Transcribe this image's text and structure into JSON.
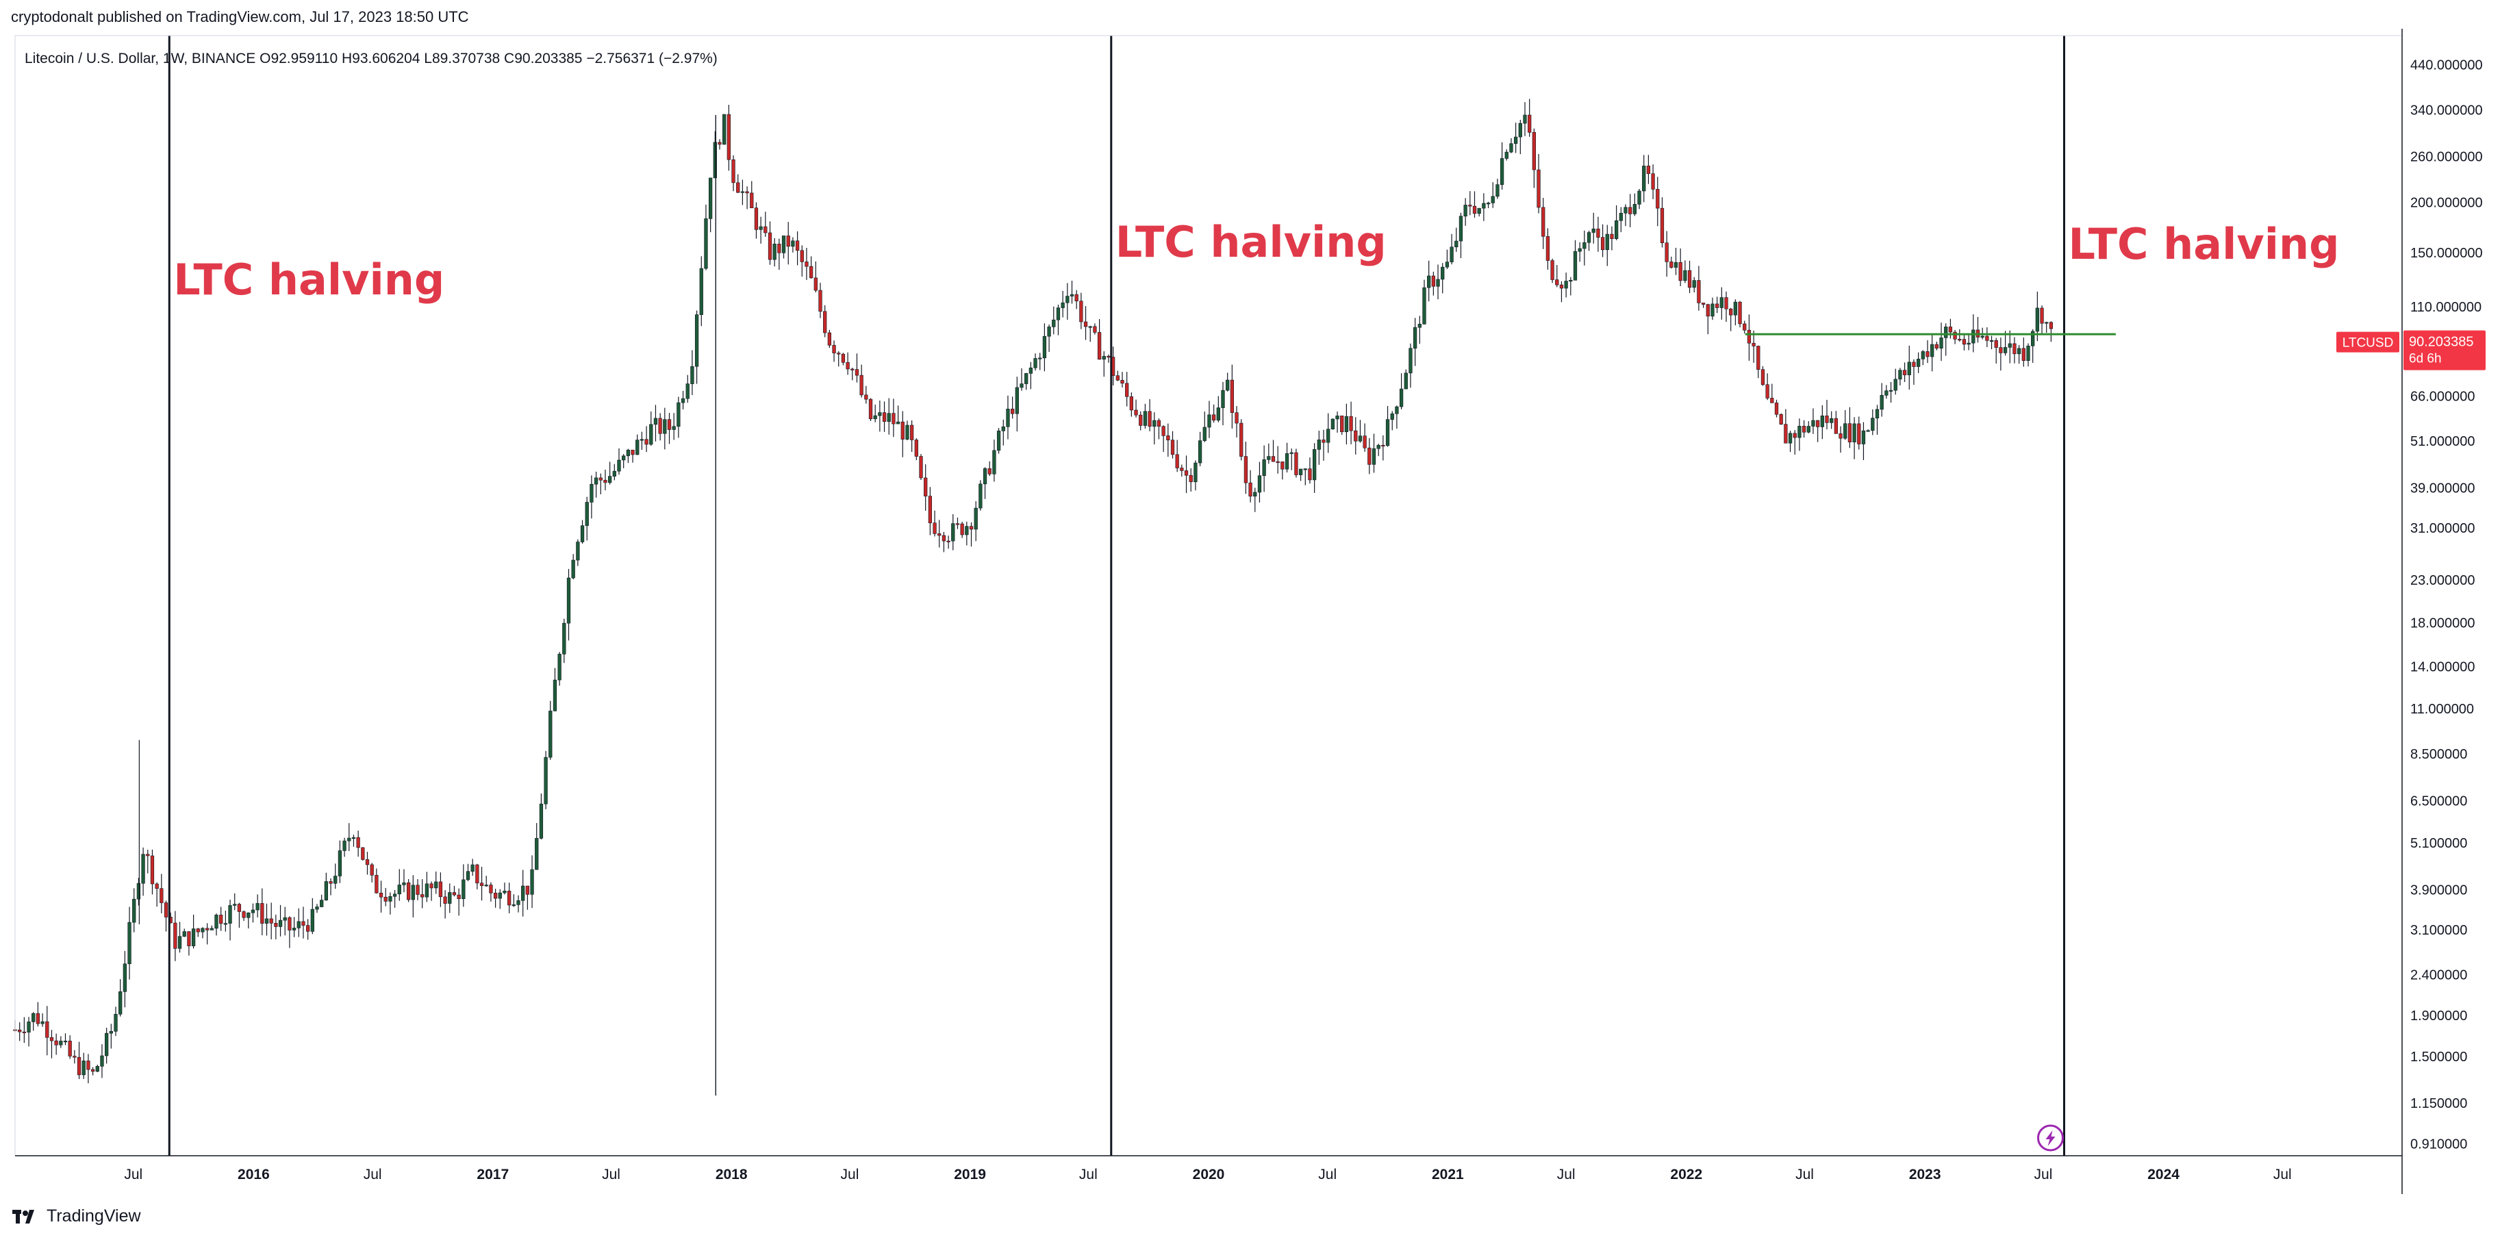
{
  "publisher": "cryptodonalt published on TradingView.com, Jul 17, 2023 18:50 UTC",
  "footer": {
    "brand": "TradingView"
  },
  "colors": {
    "up": "#26a69a",
    "up_candle": "#1e5c3a",
    "down": "#c62828",
    "annotation": "#e03a4a",
    "resistance": "#2e8b2e",
    "badge": "#f23645"
  },
  "chart_data": {
    "type": "candlestick",
    "symbol_info": "Litecoin / U.S. Dollar, 1W, BINANCE",
    "ohlc": {
      "open": "O92.959110",
      "high": "H93.606204",
      "low": "L89.370738",
      "close": "C90.203385",
      "change": "−2.756371 (−2.97%)"
    },
    "price_scale": "log",
    "y_range": [
      0.85,
      520
    ],
    "y_ticks": [
      "440.000000",
      "340.000000",
      "260.000000",
      "200.000000",
      "150.000000",
      "110.000000",
      "66.000000",
      "51.000000",
      "39.000000",
      "31.000000",
      "23.000000",
      "18.000000",
      "14.000000",
      "11.000000",
      "8.500000",
      "6.500000",
      "5.100000",
      "3.900000",
      "3.100000",
      "2.400000",
      "1.900000",
      "1.500000",
      "1.150000",
      "0.910000"
    ],
    "x_range": [
      "2015-01-01",
      "2024-12-31"
    ],
    "x_ticks": [
      {
        "date": "2015-07-01",
        "label": "Jul",
        "bold": false
      },
      {
        "date": "2016-01-01",
        "label": "2016",
        "bold": true
      },
      {
        "date": "2016-07-01",
        "label": "Jul",
        "bold": false
      },
      {
        "date": "2017-01-01",
        "label": "2017",
        "bold": true
      },
      {
        "date": "2017-07-01",
        "label": "Jul",
        "bold": false
      },
      {
        "date": "2018-01-01",
        "label": "2018",
        "bold": true
      },
      {
        "date": "2018-07-01",
        "label": "Jul",
        "bold": false
      },
      {
        "date": "2019-01-01",
        "label": "2019",
        "bold": true
      },
      {
        "date": "2019-07-01",
        "label": "Jul",
        "bold": false
      },
      {
        "date": "2020-01-01",
        "label": "2020",
        "bold": true
      },
      {
        "date": "2020-07-01",
        "label": "Jul",
        "bold": false
      },
      {
        "date": "2021-01-01",
        "label": "2021",
        "bold": true
      },
      {
        "date": "2021-07-01",
        "label": "Jul",
        "bold": false
      },
      {
        "date": "2022-01-01",
        "label": "2022",
        "bold": true
      },
      {
        "date": "2022-07-01",
        "label": "Jul",
        "bold": false
      },
      {
        "date": "2023-01-01",
        "label": "2023",
        "bold": true
      },
      {
        "date": "2023-07-01",
        "label": "Jul",
        "bold": false
      },
      {
        "date": "2024-01-01",
        "label": "2024",
        "bold": true
      },
      {
        "date": "2024-07-01",
        "label": "Jul",
        "bold": false
      }
    ],
    "halvings": [
      {
        "date": "2015-08-25",
        "label": "LTC halving"
      },
      {
        "date": "2019-08-05",
        "label": "LTC halving"
      },
      {
        "date": "2023-08-02",
        "label": "LTC halving"
      }
    ],
    "resistance": {
      "start": "2022-04-01",
      "end": "2023-10-20",
      "price": 94
    },
    "last_price": {
      "label": "LTCUSD",
      "value": "90.203385",
      "countdown": "6d 6h",
      "price": 90.2
    },
    "close_path": [
      [
        "2015-01-01",
        1.75
      ],
      [
        "2015-02-01",
        1.9
      ],
      [
        "2015-03-01",
        1.7
      ],
      [
        "2015-04-01",
        1.45
      ],
      [
        "2015-05-01",
        1.35
      ],
      [
        "2015-06-01",
        1.8
      ],
      [
        "2015-07-01",
        3.5
      ],
      [
        "2015-07-15",
        5.0
      ],
      [
        "2015-08-01",
        4.2
      ],
      [
        "2015-09-01",
        2.9
      ],
      [
        "2015-10-01",
        3.0
      ],
      [
        "2015-11-01",
        3.3
      ],
      [
        "2015-12-01",
        3.5
      ],
      [
        "2016-01-01",
        3.5
      ],
      [
        "2016-02-01",
        3.2
      ],
      [
        "2016-03-01",
        3.1
      ],
      [
        "2016-04-01",
        3.3
      ],
      [
        "2016-05-01",
        4.2
      ],
      [
        "2016-06-01",
        5.6
      ],
      [
        "2016-07-01",
        4.0
      ],
      [
        "2016-08-01",
        3.8
      ],
      [
        "2016-09-01",
        3.9
      ],
      [
        "2016-10-01",
        3.9
      ],
      [
        "2016-11-01",
        3.7
      ],
      [
        "2016-12-01",
        4.3
      ],
      [
        "2017-01-01",
        3.8
      ],
      [
        "2017-02-01",
        3.8
      ],
      [
        "2017-03-01",
        4.0
      ],
      [
        "2017-04-01",
        11.0
      ],
      [
        "2017-05-01",
        26.0
      ],
      [
        "2017-06-01",
        40.0
      ],
      [
        "2017-07-01",
        42.0
      ],
      [
        "2017-08-01",
        48.0
      ],
      [
        "2017-09-01",
        55.0
      ],
      [
        "2017-10-01",
        55.0
      ],
      [
        "2017-11-01",
        80.0
      ],
      [
        "2017-12-01",
        250.0
      ],
      [
        "2017-12-20",
        320.0
      ],
      [
        "2018-01-01",
        240.0
      ],
      [
        "2018-02-01",
        190.0
      ],
      [
        "2018-03-01",
        150.0
      ],
      [
        "2018-04-01",
        160.0
      ],
      [
        "2018-05-01",
        130.0
      ],
      [
        "2018-06-01",
        90.0
      ],
      [
        "2018-07-01",
        80.0
      ],
      [
        "2018-08-01",
        58.0
      ],
      [
        "2018-09-01",
        58.0
      ],
      [
        "2018-10-01",
        52.0
      ],
      [
        "2018-11-01",
        32.0
      ],
      [
        "2018-12-01",
        30.0
      ],
      [
        "2019-01-01",
        32.0
      ],
      [
        "2019-02-01",
        45.0
      ],
      [
        "2019-03-01",
        60.0
      ],
      [
        "2019-04-01",
        75.0
      ],
      [
        "2019-05-01",
        95.0
      ],
      [
        "2019-06-01",
        125.0
      ],
      [
        "2019-07-01",
        95.0
      ],
      [
        "2019-08-01",
        80.0
      ],
      [
        "2019-09-01",
        64.0
      ],
      [
        "2019-10-01",
        56.0
      ],
      [
        "2019-11-01",
        50.0
      ],
      [
        "2019-12-01",
        41.0
      ],
      [
        "2020-01-01",
        58.0
      ],
      [
        "2020-02-01",
        70.0
      ],
      [
        "2020-03-01",
        38.0
      ],
      [
        "2020-04-01",
        45.0
      ],
      [
        "2020-05-01",
        46.0
      ],
      [
        "2020-06-01",
        42.0
      ],
      [
        "2020-07-01",
        55.0
      ],
      [
        "2020-08-01",
        57.0
      ],
      [
        "2020-09-01",
        46.0
      ],
      [
        "2020-10-01",
        55.0
      ],
      [
        "2020-11-01",
        80.0
      ],
      [
        "2020-12-01",
        125.0
      ],
      [
        "2021-01-01",
        140.0
      ],
      [
        "2021-02-01",
        200.0
      ],
      [
        "2021-03-01",
        190.0
      ],
      [
        "2021-04-01",
        280.0
      ],
      [
        "2021-05-01",
        330.0
      ],
      [
        "2021-06-01",
        140.0
      ],
      [
        "2021-07-01",
        125.0
      ],
      [
        "2021-08-01",
        170.0
      ],
      [
        "2021-09-01",
        160.0
      ],
      [
        "2021-10-01",
        190.0
      ],
      [
        "2021-11-01",
        240.0
      ],
      [
        "2021-12-01",
        150.0
      ],
      [
        "2022-01-01",
        130.0
      ],
      [
        "2022-02-01",
        110.0
      ],
      [
        "2022-03-01",
        115.0
      ],
      [
        "2022-04-01",
        100.0
      ],
      [
        "2022-05-01",
        65.0
      ],
      [
        "2022-06-01",
        52.0
      ],
      [
        "2022-07-01",
        55.0
      ],
      [
        "2022-08-01",
        58.0
      ],
      [
        "2022-09-01",
        54.0
      ],
      [
        "2022-10-01",
        53.0
      ],
      [
        "2022-11-01",
        70.0
      ],
      [
        "2022-12-01",
        75.0
      ],
      [
        "2023-01-01",
        85.0
      ],
      [
        "2023-02-01",
        95.0
      ],
      [
        "2023-03-01",
        90.0
      ],
      [
        "2023-04-01",
        92.0
      ],
      [
        "2023-05-01",
        88.0
      ],
      [
        "2023-06-01",
        85.0
      ],
      [
        "2023-06-25",
        110.0
      ],
      [
        "2023-07-17",
        90.2
      ]
    ]
  }
}
